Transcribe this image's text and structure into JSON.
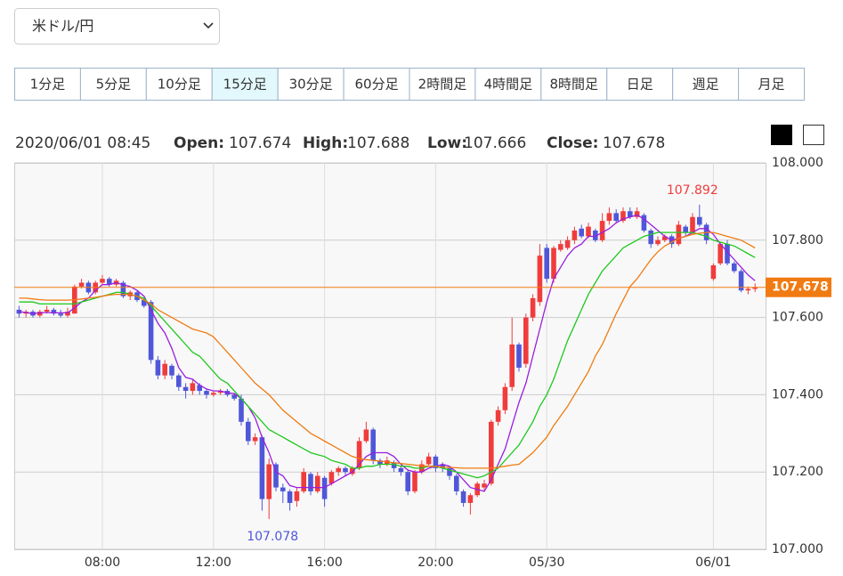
{
  "pair": "米ドル/円",
  "timeframes": [
    "1分足",
    "5分足",
    "10分足",
    "15分足",
    "30分足",
    "60分足",
    "2時間足",
    "4時間足",
    "8時間足",
    "日足",
    "週足",
    "月足"
  ],
  "active_timeframe": 3,
  "info": {
    "time": "2020/06/01 08:45",
    "labels": [
      "Open:",
      "High:",
      "Low:",
      "Close:"
    ]
  },
  "chart_data": {
    "type": "candlestick",
    "up_color": "#f03c3c",
    "down_color": "#4f57d8",
    "last_color": "#f07b12",
    "ylim": [
      107,
      108
    ],
    "yticks": [
      {
        "value": 107,
        "label": "107.000"
      },
      {
        "value": 107.2,
        "label": "107.200"
      },
      {
        "value": 107.4,
        "label": "107.400"
      },
      {
        "value": 107.6,
        "label": "107.600"
      },
      {
        "value": 107.8,
        "label": "107.800"
      },
      {
        "value": 108,
        "label": "108.000"
      }
    ],
    "grid": true,
    "categories": [
      null,
      null,
      null,
      null,
      null,
      null,
      null,
      null,
      null,
      null,
      null,
      null,
      "08:00",
      null,
      null,
      null,
      null,
      null,
      null,
      null,
      null,
      null,
      null,
      null,
      null,
      null,
      null,
      null,
      "12:00",
      null,
      null,
      null,
      null,
      null,
      null,
      null,
      null,
      null,
      null,
      null,
      null,
      null,
      null,
      null,
      "16:00",
      null,
      null,
      null,
      null,
      null,
      null,
      null,
      null,
      null,
      null,
      null,
      null,
      null,
      null,
      null,
      "20:00",
      null,
      null,
      null,
      null,
      null,
      null,
      null,
      null,
      null,
      null,
      null,
      null,
      null,
      null,
      null,
      "05/30",
      null,
      null,
      null,
      null,
      null,
      null,
      null,
      null,
      null,
      null,
      null,
      null,
      null,
      null,
      null,
      null,
      null,
      null,
      null,
      null,
      null,
      null,
      null,
      "06/01",
      null,
      null,
      null,
      null,
      null,
      null
    ],
    "candles": [
      [
        107.62,
        107.63,
        107.6,
        107.61
      ],
      [
        107.61,
        107.62,
        107.6,
        107.615
      ],
      [
        107.615,
        107.62,
        107.6,
        107.605
      ],
      [
        107.605,
        107.62,
        107.6,
        107.615
      ],
      [
        107.615,
        107.63,
        107.61,
        107.62
      ],
      [
        107.62,
        107.625,
        107.605,
        107.61
      ],
      [
        107.61,
        107.62,
        107.6,
        107.605
      ],
      [
        107.605,
        107.625,
        107.6,
        107.615
      ],
      [
        107.61,
        107.685,
        107.61,
        107.68
      ],
      [
        107.68,
        107.7,
        107.675,
        107.69
      ],
      [
        107.69,
        107.695,
        107.66,
        107.665
      ],
      [
        107.665,
        107.695,
        107.66,
        107.69
      ],
      [
        107.69,
        107.71,
        107.685,
        107.7
      ],
      [
        107.7,
        107.705,
        107.68,
        107.685
      ],
      [
        107.685,
        107.7,
        107.68,
        107.695
      ],
      [
        107.69,
        107.695,
        107.65,
        107.655
      ],
      [
        107.655,
        107.67,
        107.645,
        107.665
      ],
      [
        107.665,
        107.67,
        107.64,
        107.645
      ],
      [
        107.645,
        107.65,
        107.625,
        107.63
      ],
      [
        107.64,
        107.645,
        107.48,
        107.49
      ],
      [
        107.49,
        107.5,
        107.44,
        107.45
      ],
      [
        107.45,
        107.49,
        107.44,
        107.48
      ],
      [
        107.475,
        107.48,
        107.44,
        107.45
      ],
      [
        107.45,
        107.455,
        107.41,
        107.42
      ],
      [
        107.42,
        107.43,
        107.39,
        107.41
      ],
      [
        107.41,
        107.44,
        107.4,
        107.43
      ],
      [
        107.425,
        107.43,
        107.4,
        107.41
      ],
      [
        107.41,
        107.415,
        107.39,
        107.4
      ],
      [
        107.4,
        107.41,
        107.395,
        107.405
      ],
      [
        107.405,
        107.415,
        107.4,
        107.41
      ],
      [
        107.41,
        107.415,
        107.395,
        107.4
      ],
      [
        107.4,
        107.405,
        107.385,
        107.39
      ],
      [
        107.39,
        107.4,
        107.32,
        107.33
      ],
      [
        107.33,
        107.34,
        107.27,
        107.28
      ],
      [
        107.28,
        107.3,
        107.27,
        107.29
      ],
      [
        107.29,
        107.295,
        107.1,
        107.13
      ],
      [
        107.13,
        107.235,
        107.078,
        107.22
      ],
      [
        107.22,
        107.225,
        107.15,
        107.16
      ],
      [
        107.16,
        107.17,
        107.12,
        107.15
      ],
      [
        107.15,
        107.155,
        107.1,
        107.12
      ],
      [
        107.125,
        107.16,
        107.11,
        107.15
      ],
      [
        107.15,
        107.21,
        107.145,
        107.2
      ],
      [
        107.195,
        107.2,
        107.14,
        107.15
      ],
      [
        107.15,
        107.2,
        107.145,
        107.19
      ],
      [
        107.185,
        107.19,
        107.11,
        107.13
      ],
      [
        107.17,
        107.205,
        107.165,
        107.2
      ],
      [
        107.2,
        107.215,
        107.19,
        107.21
      ],
      [
        107.21,
        107.215,
        107.19,
        107.2
      ],
      [
        107.195,
        107.215,
        107.19,
        107.21
      ],
      [
        107.21,
        107.29,
        107.205,
        107.28
      ],
      [
        107.28,
        107.33,
        107.275,
        107.31
      ],
      [
        107.31,
        107.315,
        107.22,
        107.23
      ],
      [
        107.23,
        107.235,
        107.21,
        107.22
      ],
      [
        107.22,
        107.24,
        107.215,
        107.23
      ],
      [
        107.225,
        107.23,
        107.2,
        107.21
      ],
      [
        107.21,
        107.215,
        107.19,
        107.2
      ],
      [
        107.2,
        107.205,
        107.14,
        107.15
      ],
      [
        107.15,
        107.205,
        107.145,
        107.2
      ],
      [
        107.2,
        107.23,
        107.195,
        107.22
      ],
      [
        107.22,
        107.25,
        107.215,
        107.24
      ],
      [
        107.24,
        107.245,
        107.2,
        107.21
      ],
      [
        107.22,
        107.225,
        107.2,
        107.21
      ],
      [
        107.21,
        107.215,
        107.18,
        107.19
      ],
      [
        107.19,
        107.195,
        107.14,
        107.15
      ],
      [
        107.15,
        107.155,
        107.11,
        107.12
      ],
      [
        107.12,
        107.145,
        107.09,
        107.14
      ],
      [
        107.14,
        107.175,
        107.135,
        107.17
      ],
      [
        107.16,
        107.18,
        107.15,
        107.17
      ],
      [
        107.17,
        107.335,
        107.165,
        107.33
      ],
      [
        107.33,
        107.37,
        107.32,
        107.36
      ],
      [
        107.36,
        107.43,
        107.35,
        107.42
      ],
      [
        107.42,
        107.6,
        107.41,
        107.53
      ],
      [
        107.53,
        107.535,
        107.46,
        107.47
      ],
      [
        107.48,
        107.61,
        107.47,
        107.6
      ],
      [
        107.6,
        107.66,
        107.59,
        107.65
      ],
      [
        107.64,
        107.79,
        107.63,
        107.76
      ],
      [
        107.78,
        107.79,
        107.69,
        107.7
      ],
      [
        107.7,
        107.785,
        107.69,
        107.78
      ],
      [
        107.775,
        107.8,
        107.77,
        107.79
      ],
      [
        107.78,
        107.81,
        107.775,
        107.8
      ],
      [
        107.8,
        107.835,
        107.79,
        107.825
      ],
      [
        107.83,
        107.84,
        107.805,
        107.81
      ],
      [
        107.81,
        107.845,
        107.805,
        107.835
      ],
      [
        107.825,
        107.83,
        107.795,
        107.8
      ],
      [
        107.8,
        107.87,
        107.795,
        107.85
      ],
      [
        107.85,
        107.885,
        107.84,
        107.87
      ],
      [
        107.87,
        107.88,
        107.845,
        107.85
      ],
      [
        107.85,
        107.885,
        107.845,
        107.875
      ],
      [
        107.875,
        107.885,
        107.855,
        107.86
      ],
      [
        107.86,
        107.885,
        107.855,
        107.875
      ],
      [
        107.865,
        107.87,
        107.82,
        107.825
      ],
      [
        107.825,
        107.83,
        107.78,
        107.79
      ],
      [
        107.79,
        107.81,
        107.785,
        107.8
      ],
      [
        107.8,
        107.815,
        107.795,
        107.81
      ],
      [
        107.81,
        107.815,
        107.78,
        107.79
      ],
      [
        107.79,
        107.85,
        107.785,
        107.84
      ],
      [
        107.835,
        107.84,
        107.81,
        107.82
      ],
      [
        107.82,
        107.87,
        107.815,
        107.86
      ],
      [
        107.86,
        107.892,
        107.835,
        107.84
      ],
      [
        107.84,
        107.845,
        107.79,
        107.8
      ],
      [
        107.7,
        107.74,
        107.695,
        107.735
      ],
      [
        107.74,
        107.795,
        107.735,
        107.79
      ],
      [
        107.79,
        107.8,
        107.735,
        107.74
      ],
      [
        107.74,
        107.745,
        107.715,
        107.72
      ],
      [
        107.72,
        107.725,
        107.665,
        107.67
      ],
      [
        107.67,
        107.68,
        107.66,
        107.674
      ],
      [
        107.674,
        107.688,
        107.666,
        107.678
      ]
    ],
    "series": [
      {
        "color": "#9a1ee0",
        "values": [
          107.615,
          107.613,
          107.61,
          107.612,
          107.613,
          107.612,
          107.612,
          107.612,
          107.625,
          107.64,
          107.65,
          107.67,
          107.685,
          107.685,
          107.69,
          107.685,
          107.68,
          107.67,
          107.655,
          107.62,
          107.585,
          107.56,
          107.52,
          107.47,
          107.445,
          107.44,
          107.425,
          107.415,
          107.41,
          107.41,
          107.405,
          107.403,
          107.39,
          107.37,
          107.34,
          107.29,
          107.25,
          107.2,
          107.19,
          107.165,
          107.16,
          107.16,
          107.16,
          107.16,
          107.16,
          107.17,
          107.18,
          107.19,
          107.2,
          107.22,
          107.24,
          107.25,
          107.25,
          107.25,
          107.24,
          107.22,
          107.205,
          107.2,
          107.2,
          107.21,
          107.215,
          107.22,
          107.215,
          107.2,
          107.18,
          107.16,
          107.155,
          107.15,
          107.18,
          107.22,
          107.26,
          107.32,
          107.38,
          107.43,
          107.5,
          107.57,
          107.64,
          107.7,
          107.73,
          107.76,
          107.78,
          107.79,
          107.81,
          107.81,
          107.82,
          107.83,
          107.845,
          107.855,
          107.86,
          107.865,
          107.855,
          107.84,
          107.825,
          107.81,
          107.8,
          107.805,
          107.81,
          107.82,
          107.83,
          107.83,
          107.815,
          107.79,
          107.77,
          107.75,
          107.73,
          107.71,
          107.695
        ]
      },
      {
        "color": "#1ec81e",
        "values": [
          107.64,
          107.64,
          107.64,
          107.635,
          107.635,
          107.635,
          107.635,
          107.635,
          107.635,
          107.64,
          107.645,
          107.65,
          107.655,
          107.66,
          107.665,
          107.665,
          107.66,
          107.655,
          107.65,
          107.63,
          107.61,
          107.59,
          107.57,
          107.55,
          107.53,
          107.51,
          107.5,
          107.48,
          107.46,
          107.44,
          107.43,
          107.41,
          107.39,
          107.37,
          107.35,
          107.33,
          107.31,
          107.3,
          107.29,
          107.28,
          107.27,
          107.26,
          107.25,
          107.245,
          107.24,
          107.23,
          107.225,
          107.22,
          107.21,
          107.21,
          107.215,
          107.215,
          107.22,
          107.22,
          107.22,
          107.215,
          107.215,
          107.21,
          107.21,
          107.215,
          107.215,
          107.21,
          107.205,
          107.2,
          107.195,
          107.19,
          107.185,
          107.19,
          107.2,
          107.21,
          107.23,
          107.25,
          107.27,
          107.3,
          107.33,
          107.37,
          107.4,
          107.44,
          107.49,
          107.54,
          107.58,
          107.62,
          107.66,
          107.69,
          107.72,
          107.74,
          107.76,
          107.78,
          107.79,
          107.8,
          107.81,
          107.815,
          107.82,
          107.82,
          107.82,
          107.82,
          107.82,
          107.82,
          107.815,
          107.81,
          107.8,
          107.795,
          107.79,
          107.785,
          107.775,
          107.765,
          107.755
        ]
      },
      {
        "color": "#f07b12",
        "values": [
          107.65,
          107.65,
          107.648,
          107.646,
          107.645,
          107.645,
          107.645,
          107.645,
          107.646,
          107.648,
          107.65,
          107.652,
          107.655,
          107.658,
          107.66,
          107.66,
          107.66,
          107.655,
          107.645,
          107.635,
          107.62,
          107.61,
          107.6,
          107.59,
          107.58,
          107.57,
          107.565,
          107.56,
          107.55,
          107.53,
          107.51,
          107.49,
          107.47,
          107.45,
          107.43,
          107.415,
          107.4,
          107.38,
          107.36,
          107.345,
          107.33,
          107.315,
          107.3,
          107.29,
          107.28,
          107.27,
          107.26,
          107.25,
          107.24,
          107.235,
          107.232,
          107.23,
          107.228,
          107.226,
          107.224,
          107.222,
          107.22,
          107.218,
          107.216,
          107.215,
          107.214,
          107.213,
          107.212,
          107.211,
          107.21,
          107.21,
          107.21,
          107.21,
          107.21,
          107.212,
          107.215,
          107.218,
          107.22,
          107.235,
          107.25,
          107.27,
          107.29,
          107.32,
          107.345,
          107.37,
          107.4,
          107.43,
          107.46,
          107.5,
          107.53,
          107.57,
          107.61,
          107.645,
          107.68,
          107.7,
          107.725,
          107.75,
          107.77,
          107.785,
          107.795,
          107.805,
          107.81,
          107.815,
          107.818,
          107.82,
          107.82,
          107.815,
          107.81,
          107.805,
          107.8,
          107.79,
          107.78
        ]
      }
    ]
  }
}
